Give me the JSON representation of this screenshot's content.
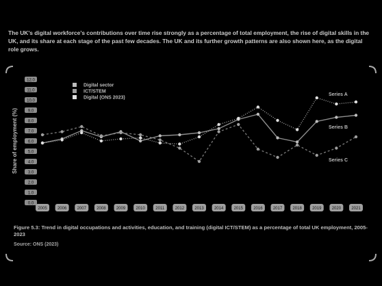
{
  "page": {
    "intro_text": "The UK's digital workforce’s contributions over time rise strongly as a percentage of total employment, the rise of digital skills in the UK, and its share at each stage of the past few decades. The UK and its further growth patterns are also shown here, as the digital role grows.",
    "caption": "Figure 5.3: Trend in digital occupations and activities, education, and training (digital ICT/STEM) as a percentage of total UK employment, 2005-2023",
    "source": "Source: ONS (2023)"
  },
  "colors": {
    "background": "#000000",
    "text": "#cccccc",
    "series_1": "#bdbdbd",
    "series_2": "#9e9e9e",
    "series_3": "#e0e0e0",
    "xtick_box": "#a0a0a0"
  },
  "chart_data": {
    "type": "line",
    "title": "",
    "ylabel": "Share of employment (%)",
    "xlabel": "",
    "ylim": [
      0,
      12
    ],
    "yticks": [
      "0.0",
      "1.0",
      "2.0",
      "3.0",
      "4.0",
      "5.0",
      "6.0",
      "7.0",
      "8.0",
      "9.0",
      "10.0",
      "11.0",
      "12.0"
    ],
    "categories": [
      "2005",
      "2006",
      "2007",
      "2008",
      "2009",
      "2010",
      "2011",
      "2012",
      "2013",
      "2014",
      "2015",
      "2016",
      "2017",
      "2018",
      "2019",
      "2020",
      "2021"
    ],
    "legend_position": "top-left",
    "series": [
      {
        "name": "Digital sector",
        "values": [
          5.8,
          6.2,
          7.0,
          6.4,
          6.9,
          6.0,
          6.5,
          6.6,
          6.8,
          7.2,
          8.1,
          8.6,
          6.3,
          5.9,
          7.9,
          8.3,
          8.5
        ]
      },
      {
        "name": "ICT/STEM",
        "values": [
          6.6,
          6.9,
          7.4,
          6.5,
          6.8,
          6.6,
          6.1,
          5.3,
          4.0,
          6.9,
          7.6,
          5.2,
          4.4,
          5.6,
          4.6,
          5.3,
          6.4
        ]
      },
      {
        "name": "Digital (ONS 2023)",
        "values": [
          5.8,
          6.1,
          6.8,
          6.0,
          6.2,
          6.3,
          5.8,
          5.7,
          6.4,
          7.6,
          8.2,
          9.3,
          8.0,
          7.1,
          10.2,
          9.6,
          9.8
        ]
      }
    ],
    "annotations": [
      "Series A",
      "Series B",
      "Series C"
    ]
  }
}
